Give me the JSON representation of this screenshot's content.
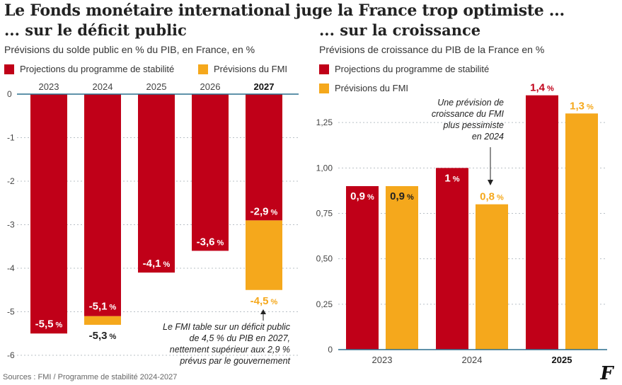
{
  "title": "Le Fonds monétaire international juge la France trop optimiste ...",
  "left": {
    "heading": "... sur le déficit public",
    "description": "Prévisions du solde public en % du PIB, en France, en %"
  },
  "right": {
    "heading": "... sur la croissance",
    "description": "Prévisions de croissance du PIB de la France en %"
  },
  "legend": {
    "stability": "Projections du programme de stabilité",
    "imf": "Prévisions du FMI"
  },
  "colors": {
    "stability": "#c00018",
    "imf": "#f5a81c",
    "grid": "#b9c0c6",
    "baseline": "#2a6f8e"
  },
  "source": "Sources : FMI / Programme de stabilité 2024-2027",
  "logo": "F",
  "chart_data": [
    {
      "type": "bar",
      "title": "... sur le déficit public",
      "subtitle": "Prévisions du solde public en % du PIB, en France, en %",
      "categories": [
        "2023",
        "2024",
        "2025",
        "2026",
        "2027"
      ],
      "highlight_category": "2027",
      "ylim": [
        -6,
        0
      ],
      "yticks": [
        {
          "value": 0,
          "label": "0"
        },
        {
          "value": -1,
          "label": "-1"
        },
        {
          "value": -2,
          "label": "-2"
        },
        {
          "value": -3,
          "label": "-3"
        },
        {
          "value": -4,
          "label": "-4"
        },
        {
          "value": -5,
          "label": "-5"
        },
        {
          "value": -6,
          "label": "-6"
        }
      ],
      "grid": true,
      "legend_position": "top-left",
      "series": [
        {
          "name": "Projections du programme de stabilité",
          "values": [
            -5.5,
            -5.1,
            -4.1,
            -3.6,
            -2.9
          ],
          "labels": [
            "-5,5",
            "-5,1",
            "-4,1",
            "-3,6",
            "-2,9"
          ]
        },
        {
          "name": "Prévisions du FMI",
          "values": [
            null,
            -5.3,
            null,
            null,
            -4.5
          ],
          "labels": [
            "",
            "-5,3",
            "",
            "",
            "-4,5"
          ]
        }
      ],
      "percent_suffix": "%",
      "annotation": [
        "Le FMI table sur un déficit public",
        "de 4,5 % du PIB en 2027,",
        "nettement supérieur aux 2,9 %",
        "prévus par le gouvernement"
      ]
    },
    {
      "type": "bar",
      "title": "... sur la croissance",
      "subtitle": "Prévisions de croissance du PIB de la France en %",
      "categories": [
        "2023",
        "2024",
        "2025"
      ],
      "highlight_category": "2025",
      "ylim": [
        0,
        1.5
      ],
      "yticks": [
        {
          "value": 0,
          "label": "0"
        },
        {
          "value": 0.25,
          "label": "0,25"
        },
        {
          "value": 0.5,
          "label": "0,50"
        },
        {
          "value": 0.75,
          "label": "0,75"
        },
        {
          "value": 1.0,
          "label": "1,00"
        },
        {
          "value": 1.25,
          "label": "1,25"
        }
      ],
      "grid": true,
      "legend_position": "top-left",
      "series": [
        {
          "name": "Projections du programme de stabilité",
          "values": [
            0.9,
            1.0,
            1.4
          ],
          "labels": [
            "0,9",
            "1",
            "1,4"
          ]
        },
        {
          "name": "Prévisions du FMI",
          "values": [
            0.9,
            0.8,
            1.3
          ],
          "labels": [
            "0,9",
            "0,8",
            "1,3"
          ]
        }
      ],
      "percent_suffix": "%",
      "annotation": [
        "Une prévision de",
        "croissance du FMI",
        "plus pessimiste",
        "en 2024"
      ]
    }
  ]
}
